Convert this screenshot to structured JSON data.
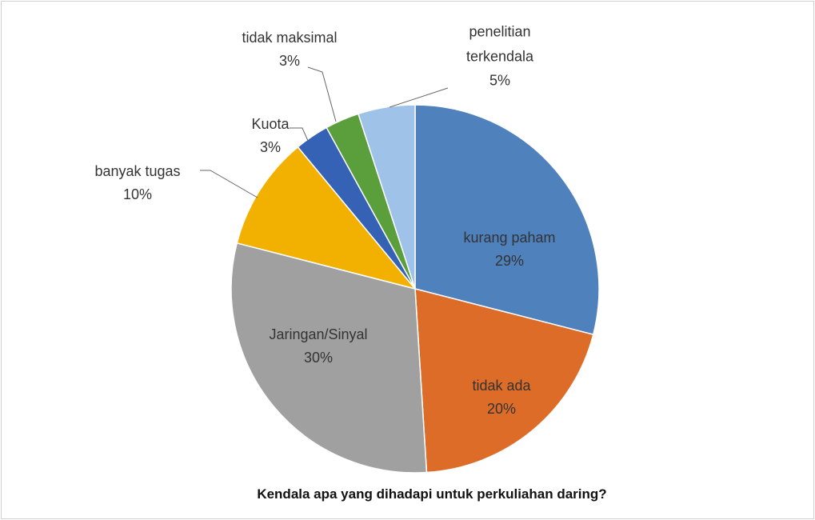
{
  "chart_data": {
    "type": "pie",
    "title": "Kendala apa yang dihadapi  untuk perkuliahan daring?",
    "categories": [
      "kurang paham",
      "tidak ada",
      "Jaringan/Sinyal",
      "banyak tugas",
      "Kuota",
      "tidak maksimal",
      "penelitian terkendala"
    ],
    "values": [
      29,
      20,
      30,
      10,
      3,
      3,
      5
    ],
    "value_labels": [
      "29%",
      "20%",
      "30%",
      "10%",
      "3%",
      "3%",
      "5%"
    ],
    "colors": [
      "#4f81bd",
      "#dd6c28",
      "#a0a0a0",
      "#f2b000",
      "#3562b5",
      "#5b9e3c",
      "#9fc3e8"
    ]
  }
}
